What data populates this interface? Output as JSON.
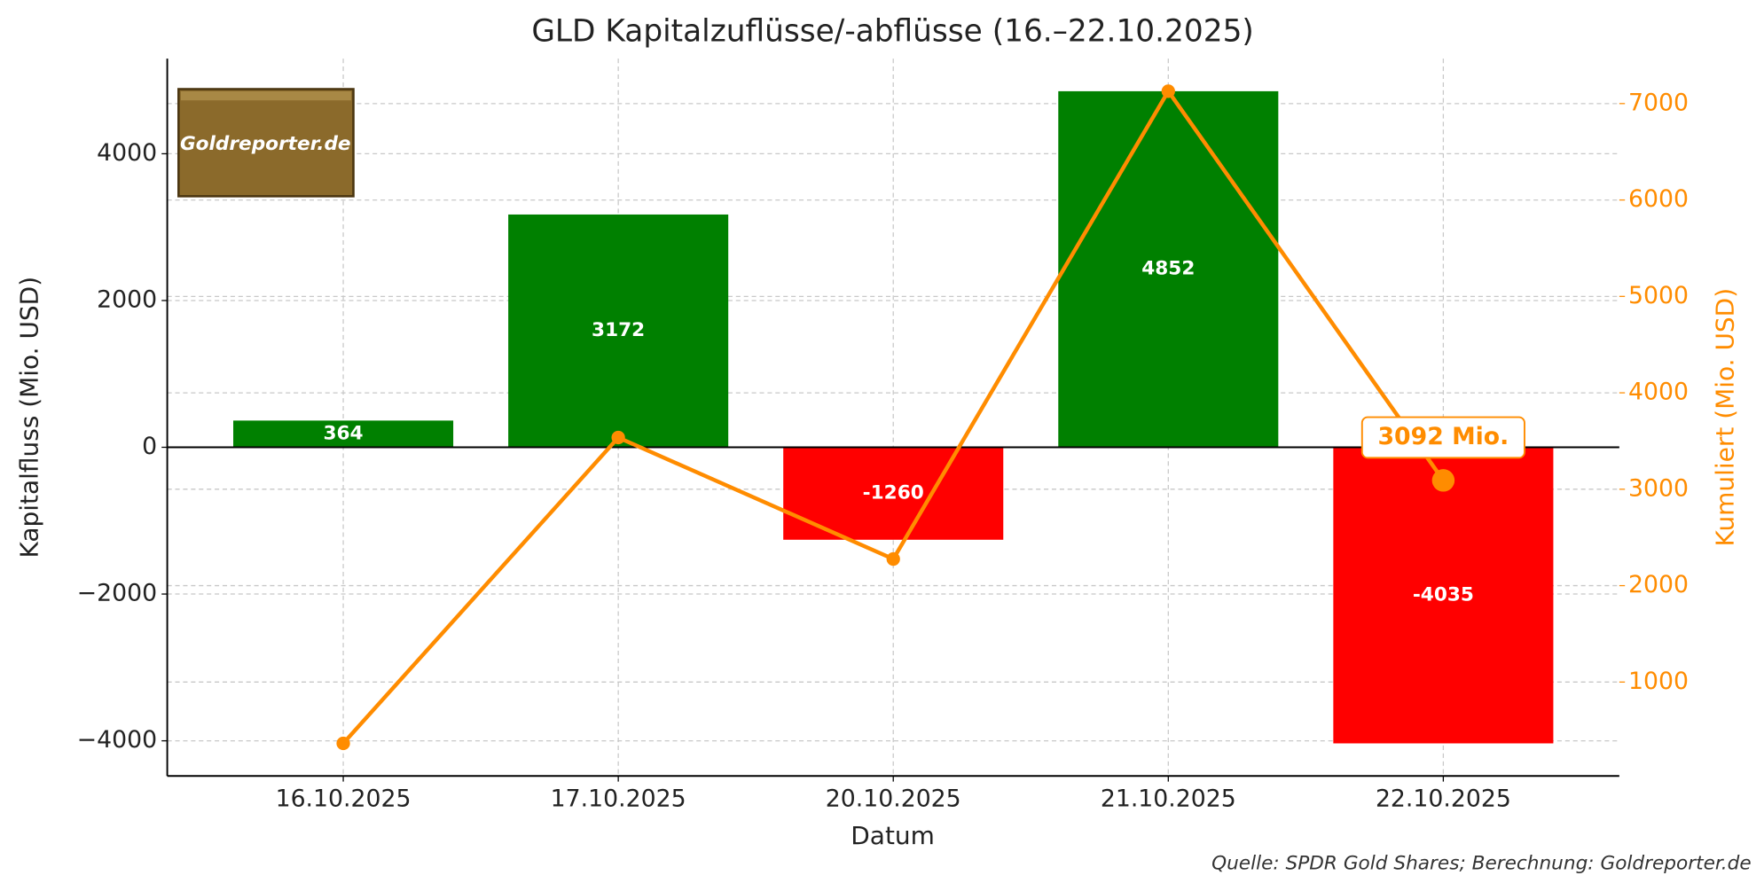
{
  "chart_data": {
    "type": "bar",
    "title": "GLD Kapitalzuflüsse/-abflüsse (16.–22.10.2025)",
    "x_label": "Datum",
    "y_label": "Kapitalfluss (Mio. USD)",
    "y2_label": "Kumuliert (Mio. USD)",
    "categories": [
      "16.10.2025",
      "17.10.2025",
      "20.10.2025",
      "21.10.2025",
      "22.10.2025"
    ],
    "series": [
      {
        "type": "bar",
        "values": [
          364,
          3172,
          -1260,
          4852,
          -4035
        ],
        "colors": [
          "#008000",
          "#008000",
          "#ff0000",
          "#008000",
          "#ff0000"
        ]
      },
      {
        "type": "line",
        "axis": "y2",
        "values": [
          364,
          3536,
          2276,
          7128,
          3092
        ],
        "color": "#ff8c00"
      }
    ],
    "ylim": [
      -4479,
      5296
    ],
    "yticks": [
      {
        "value": -4000,
        "label": "−4000"
      },
      {
        "value": -2000,
        "label": "−2000"
      },
      0,
      2000,
      4000
    ],
    "y2lim": [
      26,
      7466
    ],
    "y2ticks": [
      1000,
      2000,
      3000,
      4000,
      5000,
      6000,
      7000
    ],
    "grid": true,
    "annotation": "3092 Mio.",
    "logo": "Goldreporter.de",
    "source": "Quelle: SPDR Gold Shares; Berechnung: Goldreporter.de"
  }
}
